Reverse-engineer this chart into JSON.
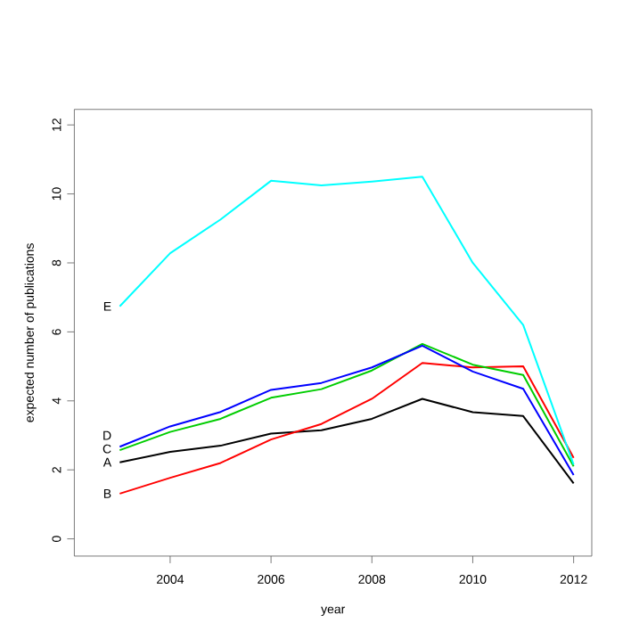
{
  "chart_data": {
    "type": "line",
    "xlabel": "year",
    "ylabel": "expected number of publications",
    "x": [
      2003,
      2004,
      2005,
      2006,
      2007,
      2008,
      2009,
      2010,
      2011,
      2012
    ],
    "xlim": [
      2002.1,
      2012.36
    ],
    "ylim": [
      -0.5,
      12.45
    ],
    "xticks": [
      2004,
      2006,
      2008,
      2010,
      2012
    ],
    "yticks": [
      0,
      2,
      4,
      6,
      8,
      10,
      12
    ],
    "grid": false,
    "legend": false,
    "marker": "none",
    "line_style": "solid",
    "series": [
      {
        "name": "A",
        "color": "#000000",
        "values": [
          2.22,
          2.52,
          2.7,
          3.05,
          3.15,
          3.48,
          4.06,
          3.67,
          3.56,
          1.61
        ]
      },
      {
        "name": "B",
        "color": "#ff0000",
        "values": [
          1.31,
          1.77,
          2.2,
          2.88,
          3.33,
          4.06,
          5.1,
          4.97,
          5.0,
          2.35
        ]
      },
      {
        "name": "C",
        "color": "#00cd00",
        "values": [
          2.57,
          3.1,
          3.48,
          4.09,
          4.34,
          4.88,
          5.65,
          5.05,
          4.75,
          2.1
        ]
      },
      {
        "name": "D",
        "color": "#0000ff",
        "values": [
          2.67,
          3.26,
          3.68,
          4.32,
          4.52,
          4.97,
          5.6,
          4.85,
          4.35,
          1.85
        ]
      },
      {
        "name": "E",
        "color": "#00ffff",
        "values": [
          6.74,
          8.28,
          9.26,
          10.38,
          10.25,
          10.36,
          10.5,
          8.0,
          6.2,
          2.15
        ]
      }
    ]
  }
}
